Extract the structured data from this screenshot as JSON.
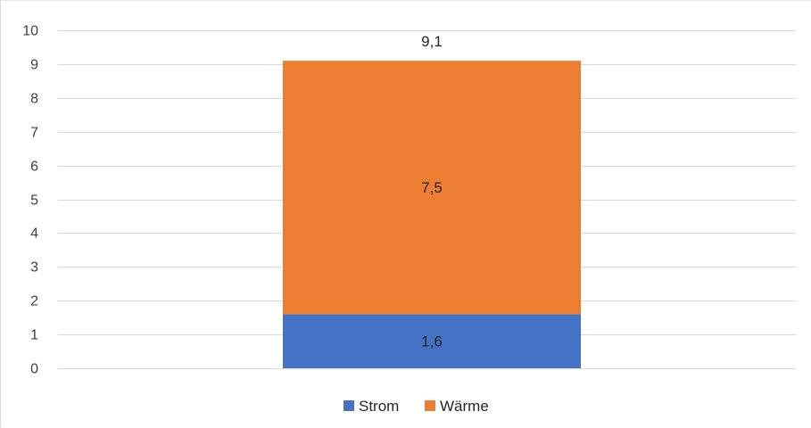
{
  "chart_data": {
    "type": "bar",
    "stacked": true,
    "categories": [
      ""
    ],
    "series": [
      {
        "name": "Strom",
        "values": [
          1.6
        ],
        "labels": [
          "1,6"
        ],
        "color": "#4472C4"
      },
      {
        "name": "Wärme",
        "values": [
          7.5
        ],
        "labels": [
          "7,5"
        ],
        "color": "#ED7D31"
      }
    ],
    "totals": [
      9.1
    ],
    "total_labels": [
      "9,1"
    ],
    "ylim": [
      0,
      10
    ],
    "yticks": [
      0,
      1,
      2,
      3,
      4,
      5,
      6,
      7,
      8,
      9,
      10
    ],
    "ytick_labels": [
      "0",
      "1",
      "2",
      "3",
      "4",
      "5",
      "6",
      "7",
      "8",
      "9",
      "10"
    ],
    "grid": true,
    "grid_color": "#d9d9d9",
    "legend_position": "bottom",
    "title": "",
    "xlabel": "",
    "ylabel": ""
  }
}
